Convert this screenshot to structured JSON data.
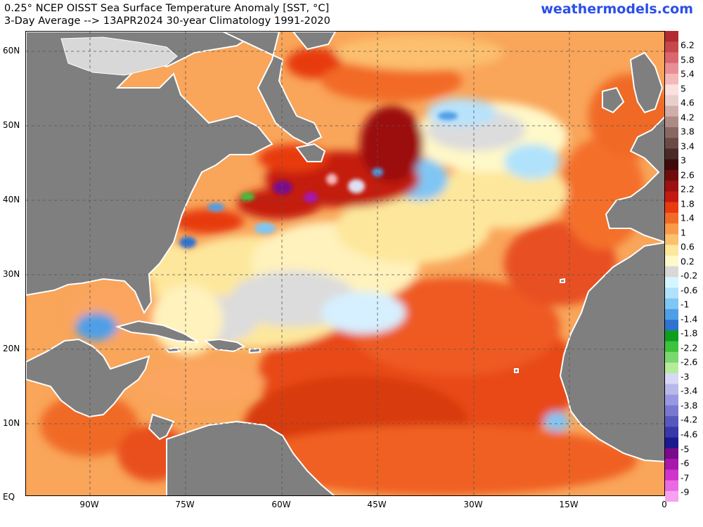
{
  "header": {
    "title_line1": "0.25° NCEP OISST Sea Surface Temperature Anomaly [SST, °C]",
    "title_line2": "3-Day Average --> 13APR2024   30-year Climatology 1991-2020",
    "brand": "weathermodels.com"
  },
  "axes": {
    "lat_labels": [
      "60N",
      "50N",
      "40N",
      "30N",
      "20N",
      "10N",
      "EQ"
    ],
    "lon_labels": [
      "90W",
      "75W",
      "60W",
      "45W",
      "30W",
      "15W",
      "0"
    ]
  },
  "colorbar": {
    "labels": [
      "6.2",
      "5.8",
      "5.4",
      "5",
      "4.6",
      "4.2",
      "3.8",
      "3.4",
      "3",
      "2.6",
      "2.2",
      "1.8",
      "1.4",
      "1",
      "0.6",
      "0.2",
      "-0.2",
      "-0.6",
      "-1",
      "-1.4",
      "-1.8",
      "-2.2",
      "-2.6",
      "-3",
      "-3.4",
      "-3.8",
      "-4.2",
      "-4.6",
      "-5",
      "-6",
      "-7",
      "-9"
    ],
    "colors": [
      "#b22b2e",
      "#c8474d",
      "#d9676e",
      "#e88f95",
      "#f4b8bb",
      "#fbe0e0",
      "#e8cfcd",
      "#cfaea9",
      "#ad8b85",
      "#8a6762",
      "#6a4a45",
      "#4a2a26",
      "#3e0a0a",
      "#6e0c0c",
      "#9c1010",
      "#c41a10",
      "#e83a10",
      "#f26a28",
      "#f99a4a",
      "#fcc06e",
      "#fde79c",
      "#fff8c8",
      "#d8d8d8",
      "#d6f6ff",
      "#b0e2fb",
      "#80c6f4",
      "#4f9fe6",
      "#2f72d0",
      "#0e9e1e",
      "#3cc23c",
      "#7ad870",
      "#b4ec9c",
      "#d8d8f4",
      "#b8b8ec",
      "#9898e0",
      "#7878d0",
      "#5858bc",
      "#3838a8",
      "#1c1890",
      "#7a0a8a",
      "#a818ac",
      "#d034cc",
      "#ea6ae2",
      "#f6a2f0"
    ]
  },
  "map": {
    "region": "North Atlantic",
    "land_color": "#7f7f7f",
    "grid": "dashed"
  }
}
